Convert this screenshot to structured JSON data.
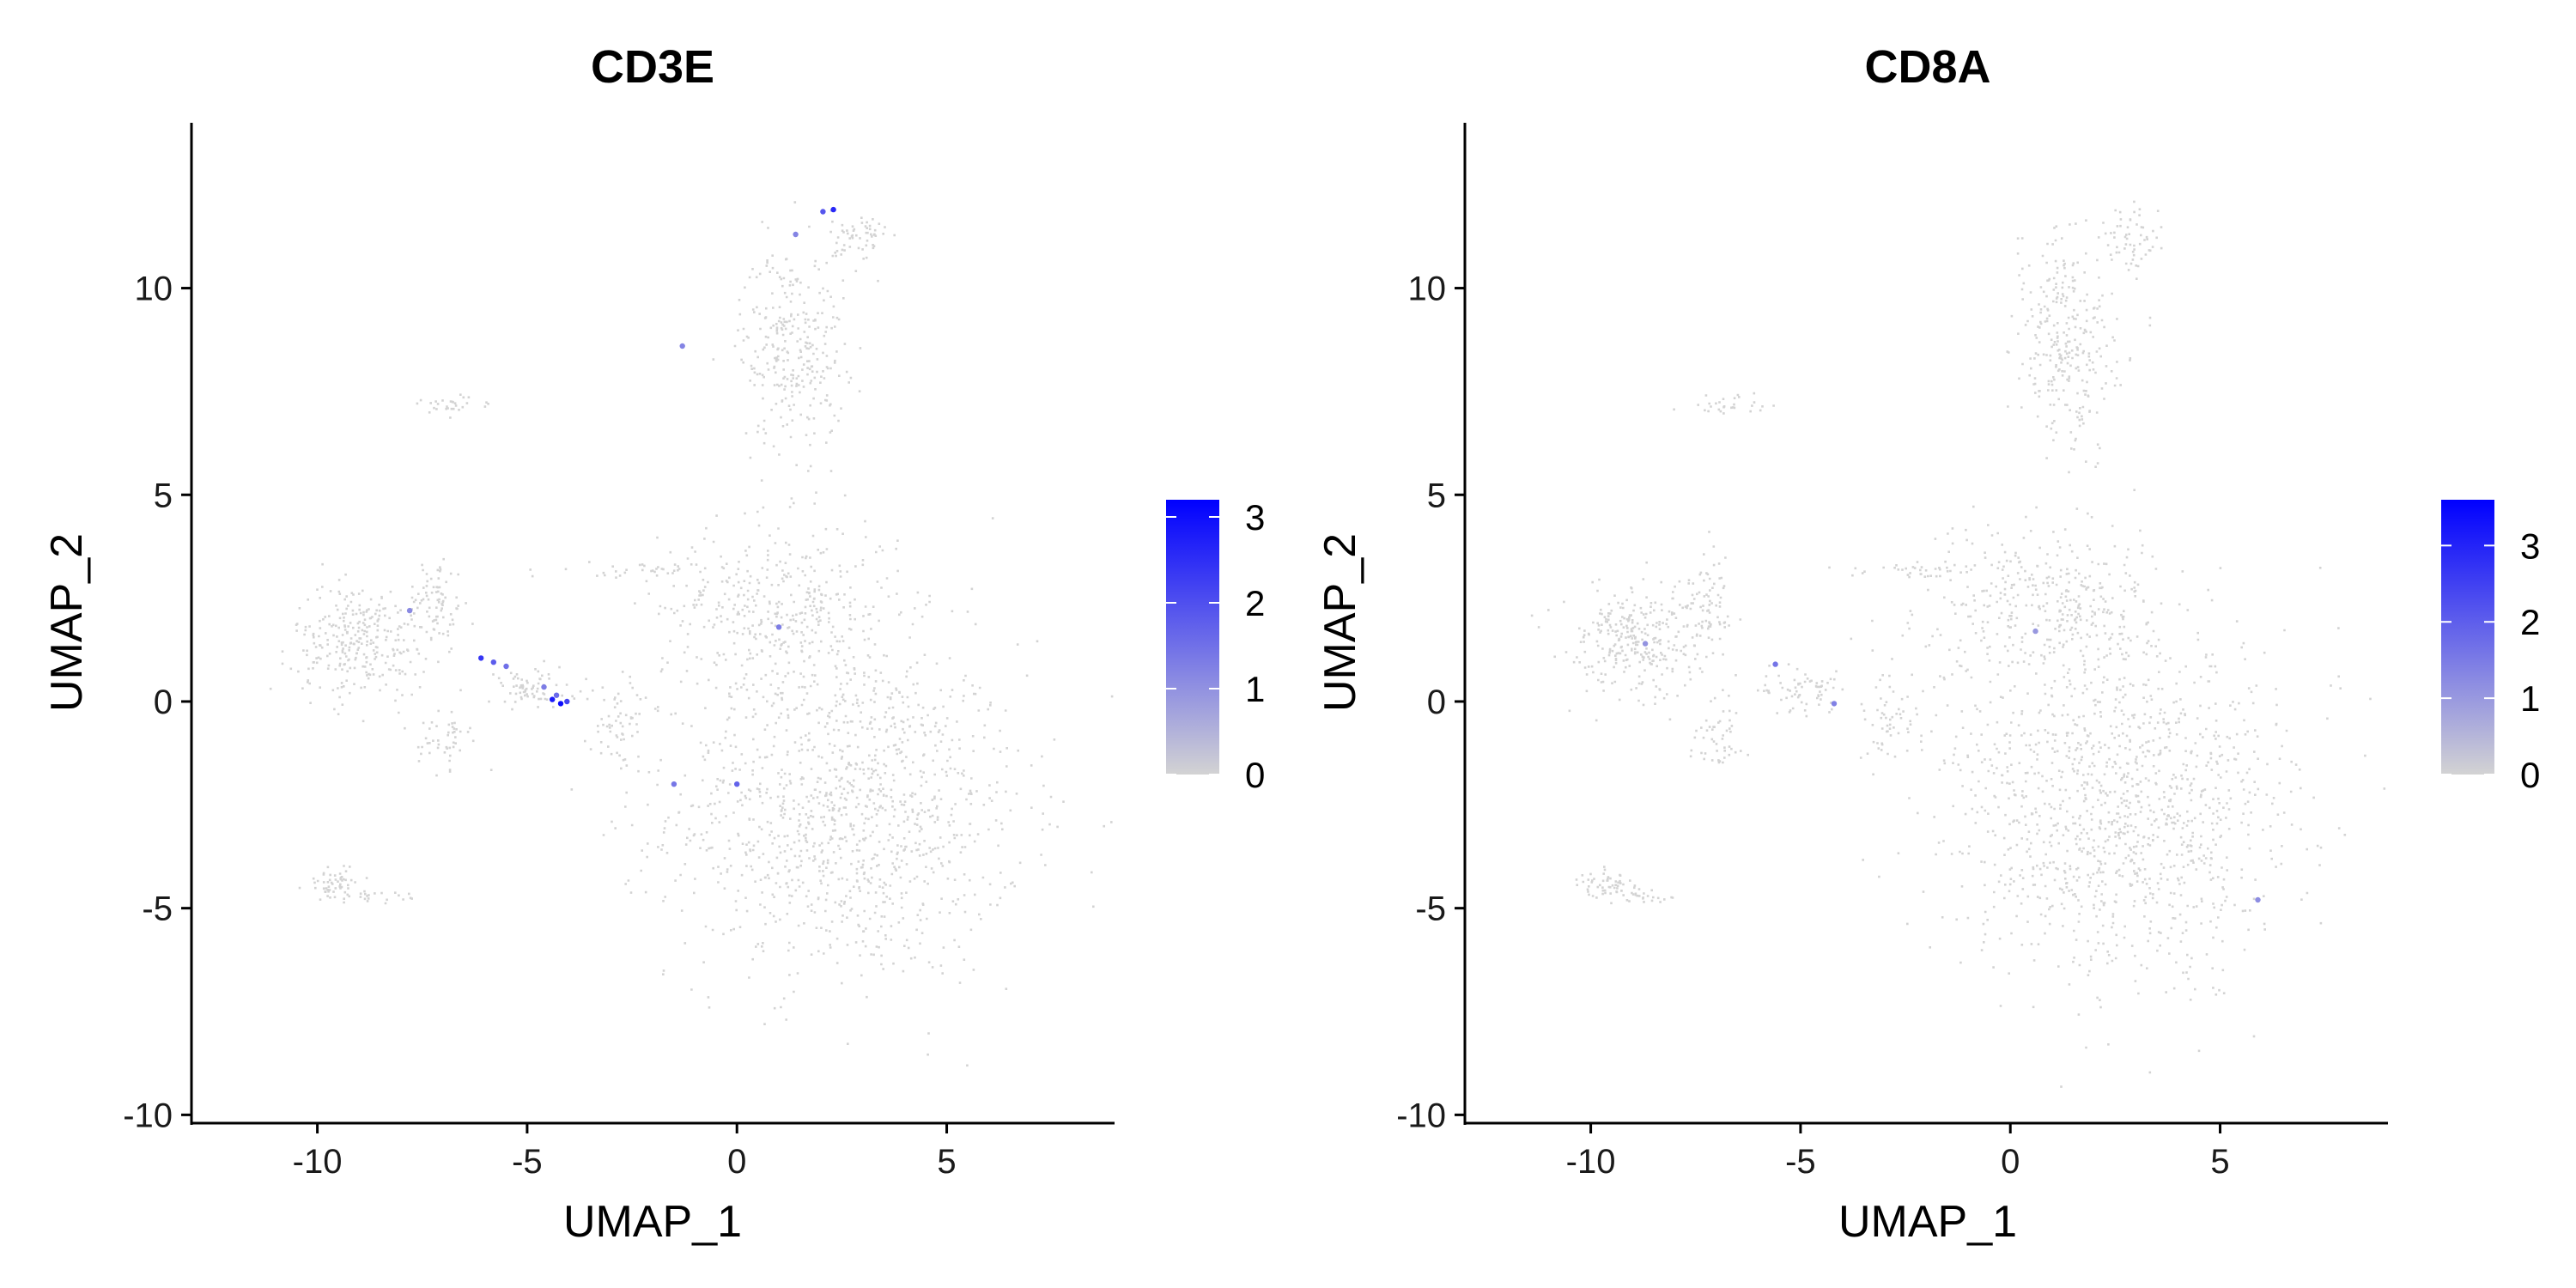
{
  "chart_data": [
    {
      "type": "scatter",
      "title": "CD3E",
      "xlabel": "UMAP_1",
      "ylabel": "UMAP_2",
      "xlim": [
        -13,
        9
      ],
      "ylim": [
        -10.2,
        14
      ],
      "xticks": [
        -10,
        -5,
        0,
        5
      ],
      "yticks": [
        -10,
        -5,
        0,
        5,
        10
      ],
      "point_color_low": "#d3d3d3",
      "point_color_high": "#0000ff",
      "legend": {
        "position": "right",
        "scale_max": 3.2,
        "breaks": [
          0,
          1,
          2,
          3
        ]
      },
      "highlight_points": [
        {
          "x": -6.1,
          "y": 1.05,
          "value": 2.4
        },
        {
          "x": -5.8,
          "y": 0.95,
          "value": 1.8
        },
        {
          "x": -5.5,
          "y": 0.85,
          "value": 1.5
        },
        {
          "x": -4.4,
          "y": 0.05,
          "value": 2.8
        },
        {
          "x": -4.2,
          "y": -0.05,
          "value": 3.0
        },
        {
          "x": -4.05,
          "y": 0.0,
          "value": 2.2
        },
        {
          "x": -4.3,
          "y": 0.15,
          "value": 1.6
        },
        {
          "x": -4.6,
          "y": 0.35,
          "value": 1.3
        },
        {
          "x": 2.3,
          "y": 11.9,
          "value": 2.6
        },
        {
          "x": 2.05,
          "y": 11.85,
          "value": 1.9
        },
        {
          "x": 1.4,
          "y": 11.3,
          "value": 1.2
        },
        {
          "x": -7.8,
          "y": 2.2,
          "value": 1.1
        },
        {
          "x": -1.5,
          "y": -2.0,
          "value": 1.4
        },
        {
          "x": 0.0,
          "y": -2.0,
          "value": 1.7
        },
        {
          "x": 1.0,
          "y": 1.8,
          "value": 1.3
        },
        {
          "x": -1.3,
          "y": 8.6,
          "value": 1.2
        }
      ]
    },
    {
      "type": "scatter",
      "title": "CD8A",
      "xlabel": "UMAP_1",
      "ylabel": "UMAP_2",
      "xlim": [
        -13,
        9
      ],
      "ylim": [
        -10.2,
        14
      ],
      "xticks": [
        -10,
        -5,
        0,
        5
      ],
      "yticks": [
        -10,
        -5,
        0,
        5,
        10
      ],
      "point_color_low": "#d3d3d3",
      "point_color_high": "#0000ff",
      "legend": {
        "position": "right",
        "scale_max": 3.6,
        "breaks": [
          0,
          1,
          2,
          3
        ]
      },
      "highlight_points": [
        {
          "x": -5.6,
          "y": 0.9,
          "value": 1.6
        },
        {
          "x": -4.2,
          "y": -0.05,
          "value": 1.4
        },
        {
          "x": -8.7,
          "y": 1.4,
          "value": 1.1
        },
        {
          "x": 5.9,
          "y": -4.8,
          "value": 1.2
        },
        {
          "x": 0.6,
          "y": 1.7,
          "value": 1.0
        }
      ]
    }
  ]
}
